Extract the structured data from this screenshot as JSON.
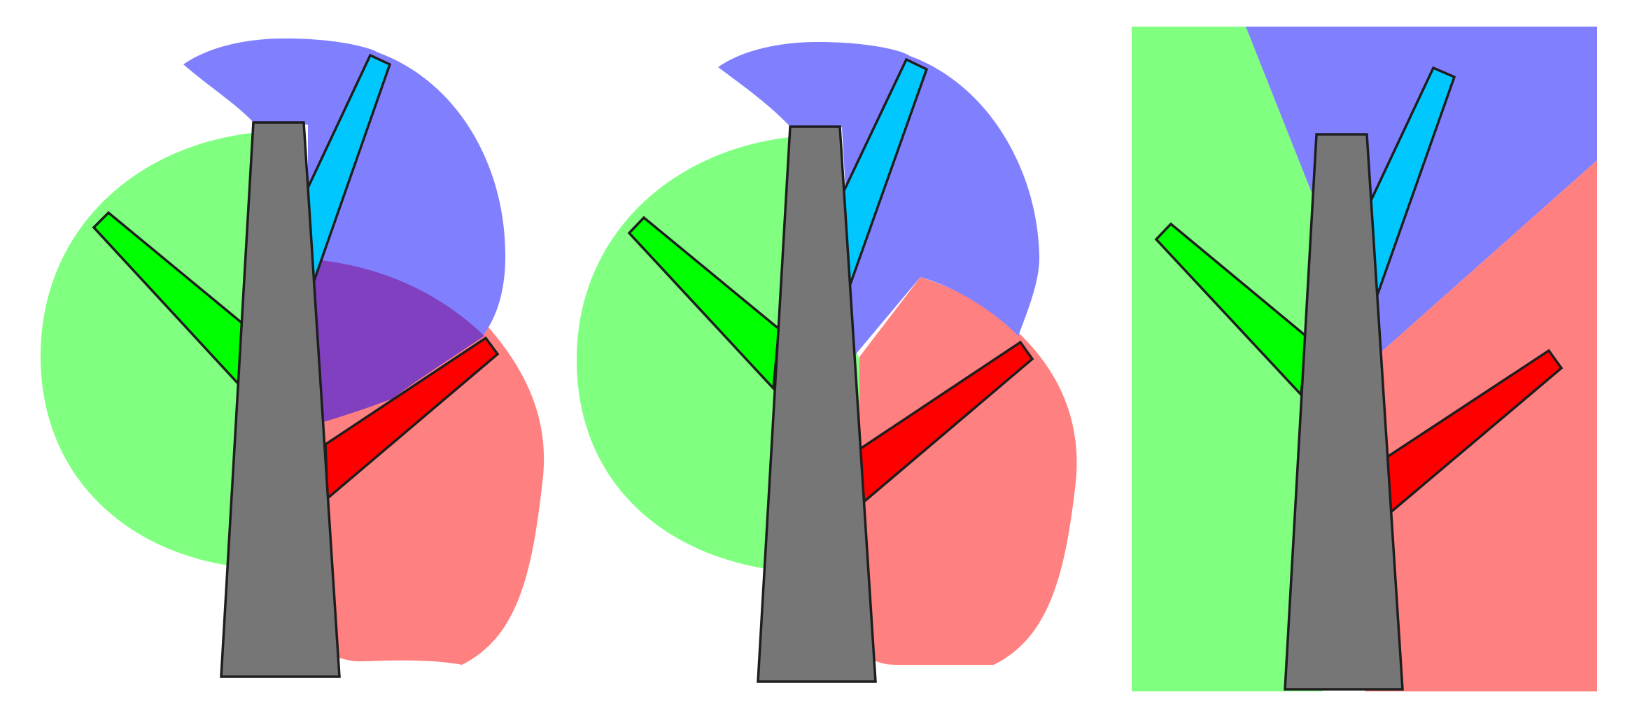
{
  "colors": {
    "background": "#ffffff",
    "region_green": "#80ff80",
    "region_blue": "#8080ff",
    "region_red": "#ff8080",
    "region_overlap": "#8040c0",
    "trunk": "#767676",
    "branch_cyan": "#00c8ff",
    "branch_green": "#00ff00",
    "branch_red": "#ff0000",
    "outline": "#1e1e1e"
  },
  "panels": [
    {
      "id": "overlapping-regions",
      "regions": [
        "green-blob",
        "blue-blob",
        "red-blob",
        "purple-overlap"
      ],
      "branches": [
        "cyan-branch",
        "green-branch",
        "red-branch"
      ],
      "trunk": "gray-trunk"
    },
    {
      "id": "partitioned-regions",
      "regions": [
        "green-blob",
        "blue-blob",
        "red-blob"
      ],
      "branches": [
        "cyan-branch",
        "green-branch",
        "red-branch"
      ],
      "trunk": "gray-trunk"
    },
    {
      "id": "linear-regions",
      "regions": [
        "green-area",
        "blue-area",
        "red-area"
      ],
      "branches": [
        "cyan-branch",
        "green-branch",
        "red-branch"
      ],
      "trunk": "gray-trunk"
    }
  ]
}
